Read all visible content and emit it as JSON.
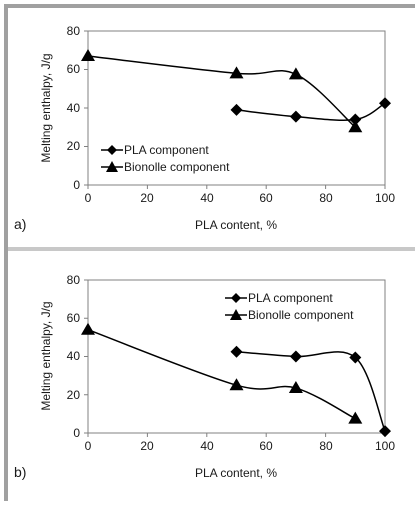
{
  "chart_data": [
    {
      "type": "line",
      "panel_label": "a)",
      "xlabel": "PLA content, %",
      "ylabel": "Melting enthalpy, J/g",
      "xlim": [
        0,
        100
      ],
      "ylim": [
        0,
        80
      ],
      "xticks": [
        "0",
        "20",
        "40",
        "60",
        "80",
        "100"
      ],
      "yticks": [
        "0",
        "20",
        "40",
        "60",
        "80"
      ],
      "legend_position": "bottom-left",
      "series": [
        {
          "name": "PLA component",
          "marker": "diamond",
          "x": [
            50,
            70,
            90,
            100
          ],
          "y": [
            39,
            35.5,
            34,
            42.5
          ]
        },
        {
          "name": "Bionolle component",
          "marker": "triangle",
          "x": [
            0,
            50,
            70,
            90
          ],
          "y": [
            67,
            58,
            57.5,
            30
          ]
        }
      ]
    },
    {
      "type": "line",
      "panel_label": "b)",
      "xlabel": "PLA content, %",
      "ylabel": "Melting enthalpy, J/g",
      "xlim": [
        0,
        100
      ],
      "ylim": [
        0,
        80
      ],
      "xticks": [
        "0",
        "20",
        "40",
        "60",
        "80",
        "100"
      ],
      "yticks": [
        "0",
        "20",
        "40",
        "60",
        "80"
      ],
      "legend_position": "top-right",
      "series": [
        {
          "name": "PLA component",
          "marker": "diamond",
          "x": [
            50,
            70,
            90,
            100
          ],
          "y": [
            42.5,
            40,
            39.5,
            1
          ]
        },
        {
          "name": "Bionolle component",
          "marker": "triangle",
          "x": [
            0,
            50,
            70,
            90
          ],
          "y": [
            54,
            25,
            23.5,
            7.5
          ]
        }
      ]
    }
  ]
}
